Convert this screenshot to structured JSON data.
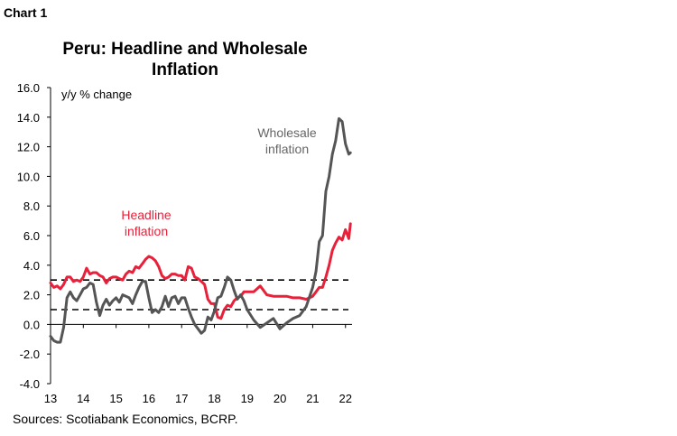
{
  "header": {
    "chart_label": "Chart 1"
  },
  "footer": {
    "sources": "Sources: Scotiabank Economics, BCRP."
  },
  "colors": {
    "headline": "#e8203a",
    "wholesale": "#555555",
    "reference": "#000000"
  },
  "chart_data": {
    "type": "line",
    "title_line1": "Peru: Headline and Wholesale",
    "title_line2": "Inflation",
    "ylabel": "y/y  % change",
    "ylim": [
      -4,
      16
    ],
    "xlim": [
      2013,
      2022.2
    ],
    "yticks": [
      "16.0",
      "14.0",
      "12.0",
      "10.0",
      "8.0",
      "6.0",
      "4.0",
      "2.0",
      "0.0",
      "-2.0",
      "-4.0"
    ],
    "xticks": [
      "13",
      "14",
      "15",
      "16",
      "17",
      "18",
      "19",
      "20",
      "21",
      "22"
    ],
    "grid": false,
    "reference_lines": [
      3,
      1
    ],
    "series": [
      {
        "name": "Headline",
        "label": [
          "Headline",
          "inflation"
        ],
        "x": [
          2013.0,
          2013.1,
          2013.2,
          2013.3,
          2013.4,
          2013.5,
          2013.6,
          2013.7,
          2013.8,
          2013.9,
          2014.0,
          2014.1,
          2014.2,
          2014.3,
          2014.4,
          2014.5,
          2014.6,
          2014.7,
          2014.8,
          2014.9,
          2015.0,
          2015.1,
          2015.2,
          2015.3,
          2015.4,
          2015.5,
          2015.6,
          2015.7,
          2015.8,
          2015.9,
          2016.0,
          2016.1,
          2016.2,
          2016.3,
          2016.4,
          2016.5,
          2016.6,
          2016.7,
          2016.8,
          2016.9,
          2017.0,
          2017.1,
          2017.2,
          2017.3,
          2017.4,
          2017.5,
          2017.6,
          2017.7,
          2017.8,
          2017.9,
          2018.0,
          2018.1,
          2018.2,
          2018.3,
          2018.4,
          2018.5,
          2018.6,
          2018.7,
          2018.8,
          2018.9,
          2019.0,
          2019.2,
          2019.4,
          2019.6,
          2019.8,
          2020.0,
          2020.2,
          2020.4,
          2020.6,
          2020.8,
          2021.0,
          2021.1,
          2021.2,
          2021.3,
          2021.4,
          2021.5,
          2021.6,
          2021.7,
          2021.8,
          2021.9,
          2022.0,
          2022.1,
          2022.15
        ],
        "values": [
          2.8,
          2.5,
          2.6,
          2.4,
          2.7,
          3.2,
          3.2,
          2.9,
          3.0,
          2.9,
          3.2,
          3.8,
          3.4,
          3.5,
          3.5,
          3.3,
          3.2,
          2.8,
          3.1,
          3.2,
          3.2,
          3.1,
          3.0,
          3.4,
          3.6,
          3.5,
          3.9,
          3.8,
          4.1,
          4.4,
          4.6,
          4.5,
          4.3,
          3.9,
          3.3,
          3.1,
          3.2,
          3.4,
          3.4,
          3.3,
          3.3,
          3.0,
          3.9,
          3.8,
          3.2,
          3.1,
          2.9,
          2.7,
          1.7,
          1.4,
          1.4,
          0.5,
          0.4,
          1.0,
          1.3,
          1.2,
          1.6,
          1.8,
          1.9,
          2.2,
          2.2,
          2.2,
          2.6,
          2.0,
          1.9,
          1.9,
          1.9,
          1.8,
          1.8,
          1.7,
          1.9,
          2.2,
          2.5,
          2.5,
          3.2,
          4.0,
          5.0,
          5.5,
          5.9,
          5.7,
          6.4,
          5.8,
          6.8
        ]
      },
      {
        "name": "Wholesale",
        "label": [
          "Wholesale",
          "inflation"
        ],
        "x": [
          2013.0,
          2013.1,
          2013.2,
          2013.3,
          2013.4,
          2013.5,
          2013.6,
          2013.7,
          2013.8,
          2013.9,
          2014.0,
          2014.1,
          2014.2,
          2014.3,
          2014.4,
          2014.5,
          2014.6,
          2014.7,
          2014.8,
          2014.9,
          2015.0,
          2015.1,
          2015.2,
          2015.3,
          2015.4,
          2015.5,
          2015.6,
          2015.7,
          2015.8,
          2015.9,
          2016.0,
          2016.1,
          2016.2,
          2016.3,
          2016.4,
          2016.5,
          2016.6,
          2016.7,
          2016.8,
          2016.9,
          2017.0,
          2017.1,
          2017.2,
          2017.3,
          2017.4,
          2017.5,
          2017.6,
          2017.7,
          2017.8,
          2017.9,
          2018.0,
          2018.1,
          2018.2,
          2018.3,
          2018.4,
          2018.5,
          2018.6,
          2018.7,
          2018.8,
          2018.9,
          2019.0,
          2019.2,
          2019.4,
          2019.6,
          2019.8,
          2020.0,
          2020.2,
          2020.4,
          2020.6,
          2020.8,
          2021.0,
          2021.1,
          2021.2,
          2021.3,
          2021.4,
          2021.5,
          2021.6,
          2021.7,
          2021.8,
          2021.9,
          2022.0,
          2022.1,
          2022.15
        ],
        "values": [
          -0.8,
          -1.1,
          -1.2,
          -1.2,
          -0.2,
          1.8,
          2.2,
          1.8,
          1.6,
          2.0,
          2.4,
          2.5,
          2.8,
          2.7,
          1.5,
          0.6,
          1.3,
          1.7,
          1.3,
          1.6,
          1.8,
          1.5,
          2.0,
          1.9,
          1.8,
          1.4,
          2.0,
          2.5,
          2.9,
          2.9,
          1.8,
          0.8,
          1.0,
          0.8,
          1.2,
          1.9,
          1.2,
          1.8,
          1.9,
          1.4,
          1.8,
          1.8,
          1.1,
          0.5,
          0.0,
          -0.3,
          -0.6,
          -0.4,
          0.5,
          0.3,
          0.9,
          1.8,
          1.9,
          2.5,
          3.2,
          3.0,
          2.3,
          1.7,
          2.0,
          1.6,
          1.0,
          0.3,
          -0.2,
          0.1,
          0.4,
          -0.3,
          0.1,
          0.4,
          0.6,
          1.2,
          2.5,
          3.6,
          5.6,
          6.0,
          9.0,
          10.0,
          11.5,
          12.4,
          13.9,
          13.7,
          12.2,
          11.5,
          11.6
        ]
      }
    ]
  }
}
